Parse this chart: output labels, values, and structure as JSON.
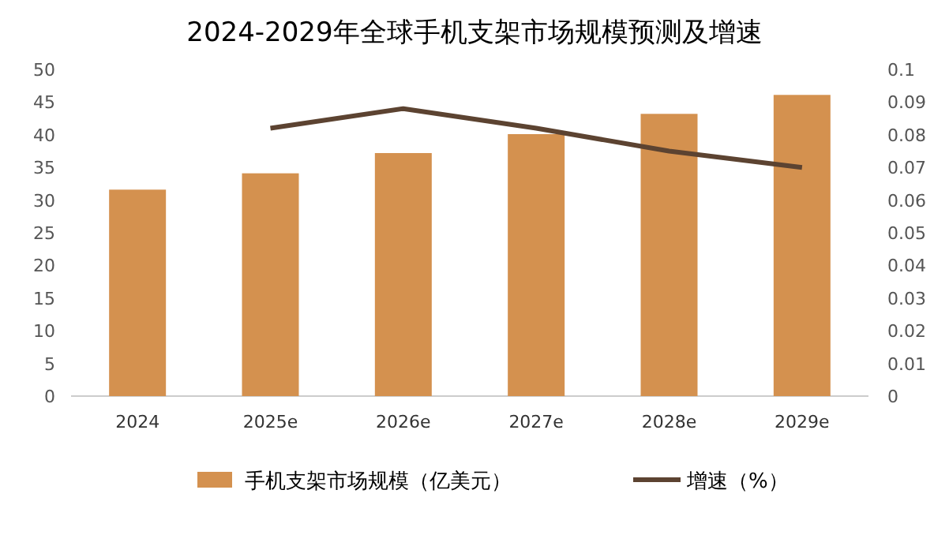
{
  "chart_data": {
    "type": "bar",
    "title": "2024-2029年全球手机支架市场规模预测及增速",
    "categories": [
      "2024",
      "2025e",
      "2026e",
      "2027e",
      "2028e",
      "2029e"
    ],
    "series": [
      {
        "name": "手机支架市场规模（亿美元）",
        "color": "#d4914f",
        "values": [
          31.6,
          34.1,
          37.2,
          40.1,
          43.2,
          46.1
        ]
      },
      {
        "name": "增速（%）",
        "type": "line",
        "axis": "y2",
        "color": "#5c4331",
        "values": [
          null,
          0.082,
          0.088,
          0.082,
          0.075,
          0.07
        ]
      }
    ],
    "ylim": [
      0,
      50
    ],
    "yticks": [
      0,
      5,
      10,
      15,
      20,
      25,
      30,
      35,
      40,
      45,
      50
    ],
    "y2lim": [
      0,
      0.1
    ],
    "y2ticks": [
      0,
      0.01,
      0.02,
      0.03,
      0.04,
      0.05,
      0.06,
      0.07,
      0.08,
      0.09,
      0.1
    ],
    "grid": false,
    "legend": "bottom",
    "marker": "none",
    "line_style": "solid"
  }
}
